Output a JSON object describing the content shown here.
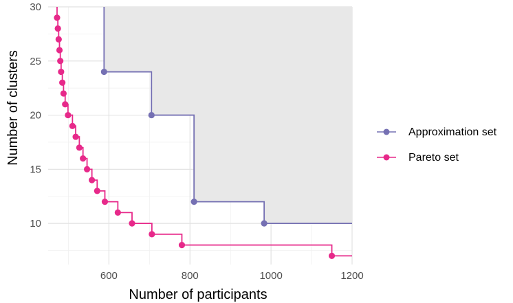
{
  "chart_data": {
    "type": "line",
    "title": "",
    "xlabel": "Number of participants",
    "ylabel": "Number of clusters",
    "xlim": [
      450,
      1200
    ],
    "ylim": [
      6.2,
      30
    ],
    "x_ticks": [
      600,
      800,
      1000,
      1200
    ],
    "x_tick_labels": [
      "600",
      "800",
      "1000",
      "1200"
    ],
    "y_ticks": [
      10,
      15,
      20,
      25,
      30
    ],
    "y_tick_labels": [
      "10",
      "15",
      "20",
      "25",
      "30"
    ],
    "grid": true,
    "legend_position": "right",
    "shaded_region": "dominated region above the approximation set",
    "series": [
      {
        "name": "Approximation set",
        "color": "#7570b3",
        "step": true,
        "points": [
          [
            588,
            24
          ],
          [
            705,
            20
          ],
          [
            810,
            12
          ],
          [
            983,
            10
          ]
        ],
        "line_start": [
          588,
          30
        ],
        "line_end": [
          1200,
          10
        ]
      },
      {
        "name": "Pareto set",
        "color": "#e7298a",
        "step": true,
        "points": [
          [
            472,
            29
          ],
          [
            474,
            28
          ],
          [
            476,
            27
          ],
          [
            478,
            26
          ],
          [
            480,
            25
          ],
          [
            482,
            24
          ],
          [
            485,
            23
          ],
          [
            488,
            22
          ],
          [
            492,
            21
          ],
          [
            499,
            20
          ],
          [
            510,
            19
          ],
          [
            518,
            18
          ],
          [
            527,
            17
          ],
          [
            536,
            16
          ],
          [
            546,
            15
          ],
          [
            558,
            14
          ],
          [
            571,
            13
          ],
          [
            590,
            12
          ],
          [
            622,
            11
          ],
          [
            657,
            10
          ],
          [
            706,
            9
          ],
          [
            780,
            8
          ],
          [
            1150,
            7
          ]
        ],
        "line_start": [
          472,
          30
        ],
        "line_end": [
          1200,
          7
        ]
      }
    ]
  }
}
